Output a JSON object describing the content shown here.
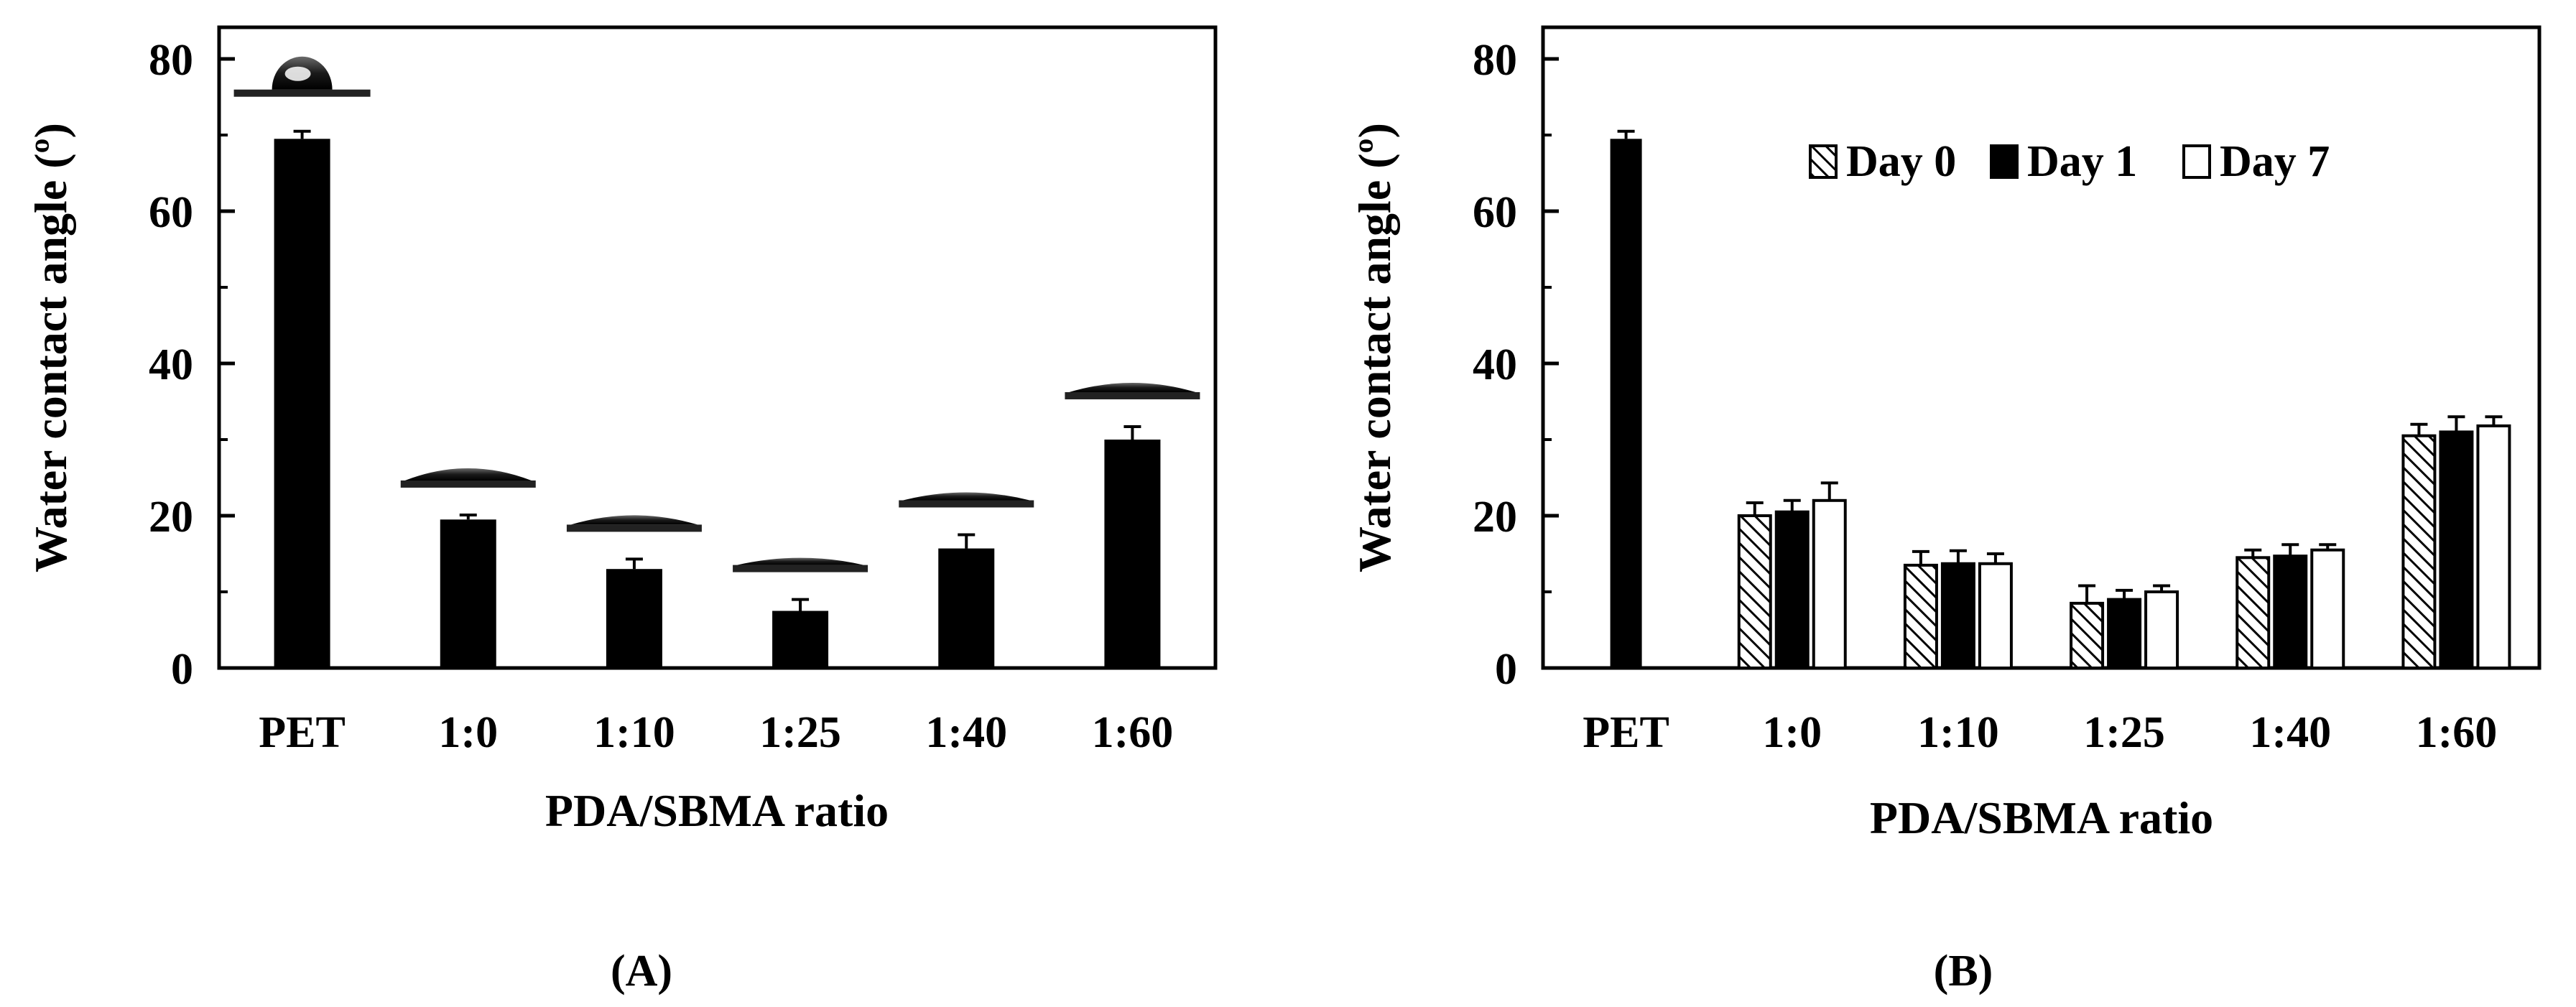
{
  "chart_data": [
    {
      "panel_label": "(A)",
      "type": "bar",
      "title": "",
      "xlabel": "PDA/SBMA ratio",
      "ylabel": "Water contact angle (º)",
      "ylim": [
        0,
        80
      ],
      "yticks": [
        0,
        20,
        40,
        60,
        80
      ],
      "categories": [
        "PET",
        "1:0",
        "1:10",
        "1:25",
        "1:40",
        "1:60"
      ],
      "values": [
        69.5,
        19.5,
        13,
        7.5,
        15.7,
        30
      ],
      "errors": [
        1,
        0.6,
        1.3,
        1.5,
        1.8,
        1.7
      ],
      "droplet_images": "water droplet photograph above each bar",
      "bar_color": "#000000",
      "grid": false
    },
    {
      "panel_label": "(B)",
      "type": "bar",
      "title": "",
      "xlabel": "PDA/SBMA ratio",
      "ylabel": "Water contact angle (º)",
      "ylim": [
        0,
        80
      ],
      "yticks": [
        0,
        20,
        40,
        60,
        80
      ],
      "categories": [
        "PET",
        "1:0",
        "1:10",
        "1:25",
        "1:40",
        "1:60"
      ],
      "legend_position": "top-right",
      "pet_value": 69.5,
      "pet_error": 1,
      "series": [
        {
          "name": "Day 0",
          "style": "hatched",
          "values": [
            null,
            20,
            13.5,
            8.5,
            14.5,
            30.5
          ],
          "errors": [
            null,
            1.7,
            1.8,
            2.3,
            1,
            1.5
          ]
        },
        {
          "name": "Day 1",
          "style": "solid-black",
          "values": [
            null,
            20.5,
            13.7,
            9,
            14.7,
            31
          ],
          "errors": [
            null,
            1.5,
            1.7,
            1.2,
            1.5,
            2
          ]
        },
        {
          "name": "Day 7",
          "style": "white",
          "values": [
            null,
            22,
            13.7,
            10,
            15.5,
            31.8
          ],
          "errors": [
            null,
            2.3,
            1.3,
            0.8,
            0.7,
            1.2
          ]
        }
      ],
      "grid": false
    }
  ]
}
